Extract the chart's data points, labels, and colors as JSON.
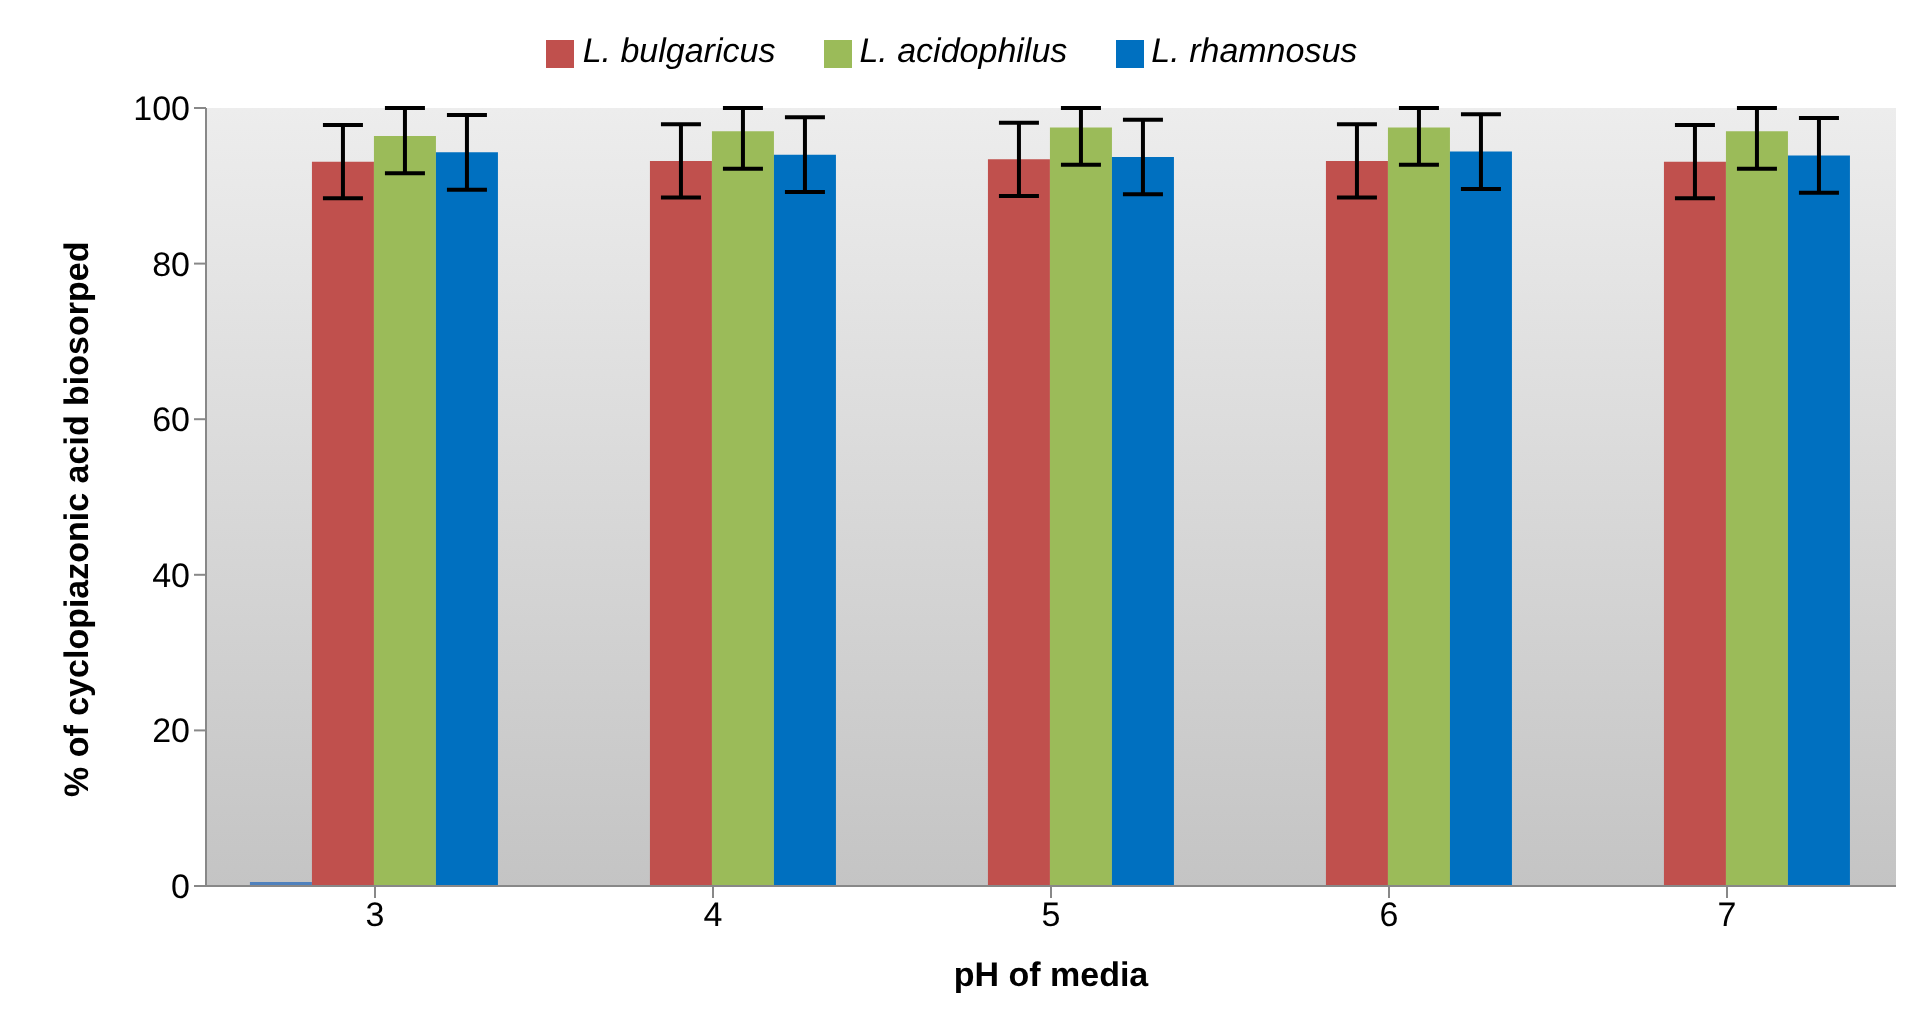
{
  "chart_data": {
    "type": "bar",
    "xlabel": "pH of media",
    "ylabel": "% of cyclopiazonic acid biosorped",
    "categories": [
      "3",
      "4",
      "5",
      "6",
      "7"
    ],
    "series": [
      {
        "color": "#4f81bd",
        "values": [
          0.5,
          0,
          0,
          0,
          0
        ]
      },
      {
        "name": "L. bulgaricus",
        "color": "#c0504d",
        "values": [
          93.1,
          93.2,
          93.4,
          93.2,
          93.1
        ],
        "errors": [
          4.7,
          4.7,
          4.7,
          4.7,
          4.7
        ]
      },
      {
        "name": "L. acidophilus",
        "color": "#9bbb59",
        "values": [
          96.4,
          97.0,
          97.5,
          97.5,
          97.0
        ],
        "errors": [
          [
            91.6,
            100
          ],
          [
            92.2,
            100
          ],
          [
            92.7,
            100
          ],
          [
            92.7,
            100
          ],
          [
            92.2,
            100
          ]
        ]
      },
      {
        "name": "L. rhamnosus",
        "color": "#0070c0",
        "values": [
          94.3,
          94.0,
          93.7,
          94.4,
          93.9
        ],
        "errors": [
          4.8,
          4.8,
          4.8,
          4.8,
          4.8
        ]
      }
    ],
    "ylim": [
      0,
      100
    ],
    "yticks": [
      0,
      20,
      40,
      60,
      80,
      100
    ],
    "grid": false,
    "legend": "top"
  }
}
